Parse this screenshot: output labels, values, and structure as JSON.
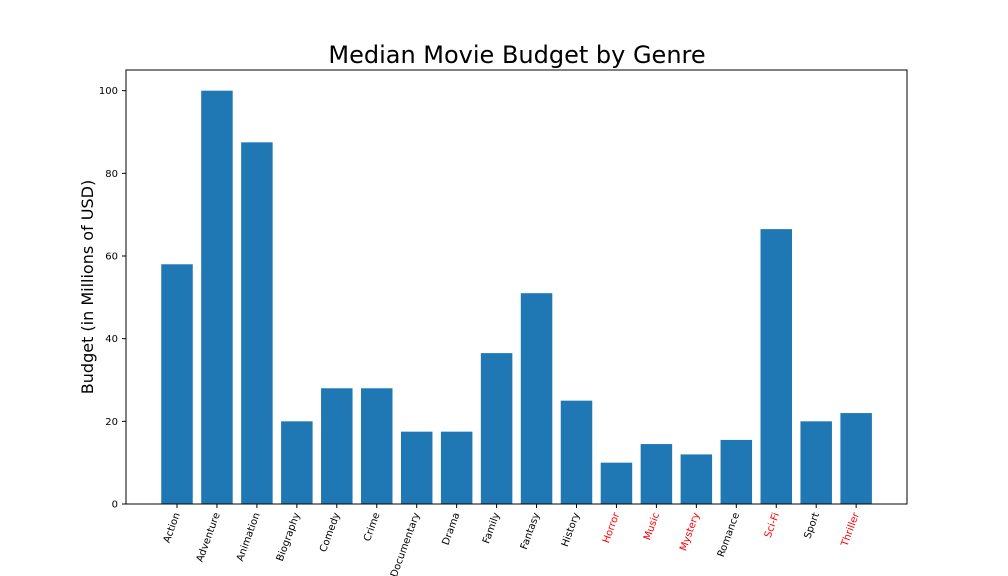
{
  "chart_data": {
    "type": "bar",
    "title": "Median Movie Budget by Genre",
    "xlabel": "",
    "ylabel": "Budget (in Millions of USD)",
    "ylim": [
      0,
      105
    ],
    "yticks": [
      0,
      20,
      40,
      60,
      80,
      100
    ],
    "grid": false,
    "bar_color": "#1f77b4",
    "highlight_color": "#ff0000",
    "categories": [
      "Action",
      "Adventure",
      "Animation",
      "Biography",
      "Comedy",
      "Crime",
      "Documentary",
      "Drama",
      "Family",
      "Fantasy",
      "History",
      "Horror",
      "Music",
      "Mystery",
      "Romance",
      "Sci-Fi",
      "Sport",
      "Thriller"
    ],
    "values": [
      58,
      100,
      87.5,
      20,
      28,
      28,
      17.5,
      17.5,
      36.5,
      51,
      25,
      10,
      14.5,
      12,
      15.5,
      66.5,
      20,
      22
    ],
    "highlighted": [
      "Horror",
      "Music",
      "Mystery",
      "Sci-Fi",
      "Thriller"
    ]
  }
}
